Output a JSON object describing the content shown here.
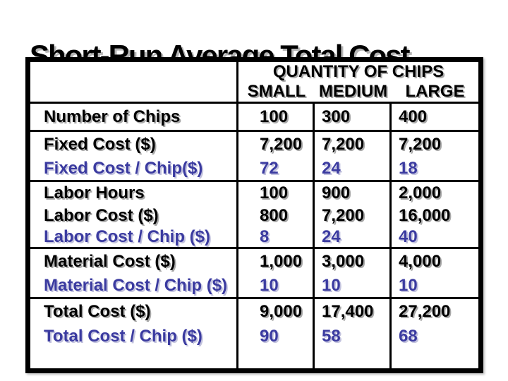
{
  "title": "Short-Run Average Total Cost",
  "table": {
    "header": {
      "line1": "QUANTITY OF CHIPS",
      "columns": [
        "SMALL",
        "MEDIUM",
        "LARGE"
      ]
    },
    "rows": [
      {
        "label": "Number of Chips",
        "values": [
          "100",
          "300",
          "400"
        ],
        "emphasis": "black",
        "group_end": true
      },
      {
        "label": "Fixed Cost ($)",
        "values": [
          "7,200",
          "7,200",
          "7,200"
        ],
        "emphasis": "black",
        "group_end": false
      },
      {
        "label": "Fixed Cost / Chip($)",
        "values": [
          "72",
          "24",
          "18"
        ],
        "emphasis": "blue",
        "group_end": true
      },
      {
        "label": "Labor Hours",
        "values": [
          "100",
          "900",
          "2,000"
        ],
        "emphasis": "black",
        "group_end": false
      },
      {
        "label": "Labor Cost ($)",
        "values": [
          "800",
          "7,200",
          "16,000"
        ],
        "emphasis": "black",
        "group_end": false
      },
      {
        "label": "Labor Cost / Chip ($)",
        "values": [
          "8",
          "24",
          "40"
        ],
        "emphasis": "blue",
        "group_end": true
      },
      {
        "label": "Material Cost ($)",
        "values": [
          "1,000",
          "3,000",
          "4,000"
        ],
        "emphasis": "black",
        "group_end": false
      },
      {
        "label": "Material Cost / Chip ($)",
        "values": [
          "10",
          "10",
          "10"
        ],
        "emphasis": "blue",
        "group_end": true
      },
      {
        "label": "Total Cost ($)",
        "values": [
          "9,000",
          "17,400",
          "27,200"
        ],
        "emphasis": "black",
        "group_end": false
      },
      {
        "label": "Total Cost / Chip ($)",
        "values": [
          "90",
          "58",
          "68"
        ],
        "emphasis": "blue",
        "group_end": false
      }
    ]
  },
  "colors": {
    "text_black": "#000000",
    "accent_blue": "#3b3ba0",
    "shadow_gray": "#a9a9a9",
    "border_black": "#000000",
    "background": "#ffffff"
  }
}
